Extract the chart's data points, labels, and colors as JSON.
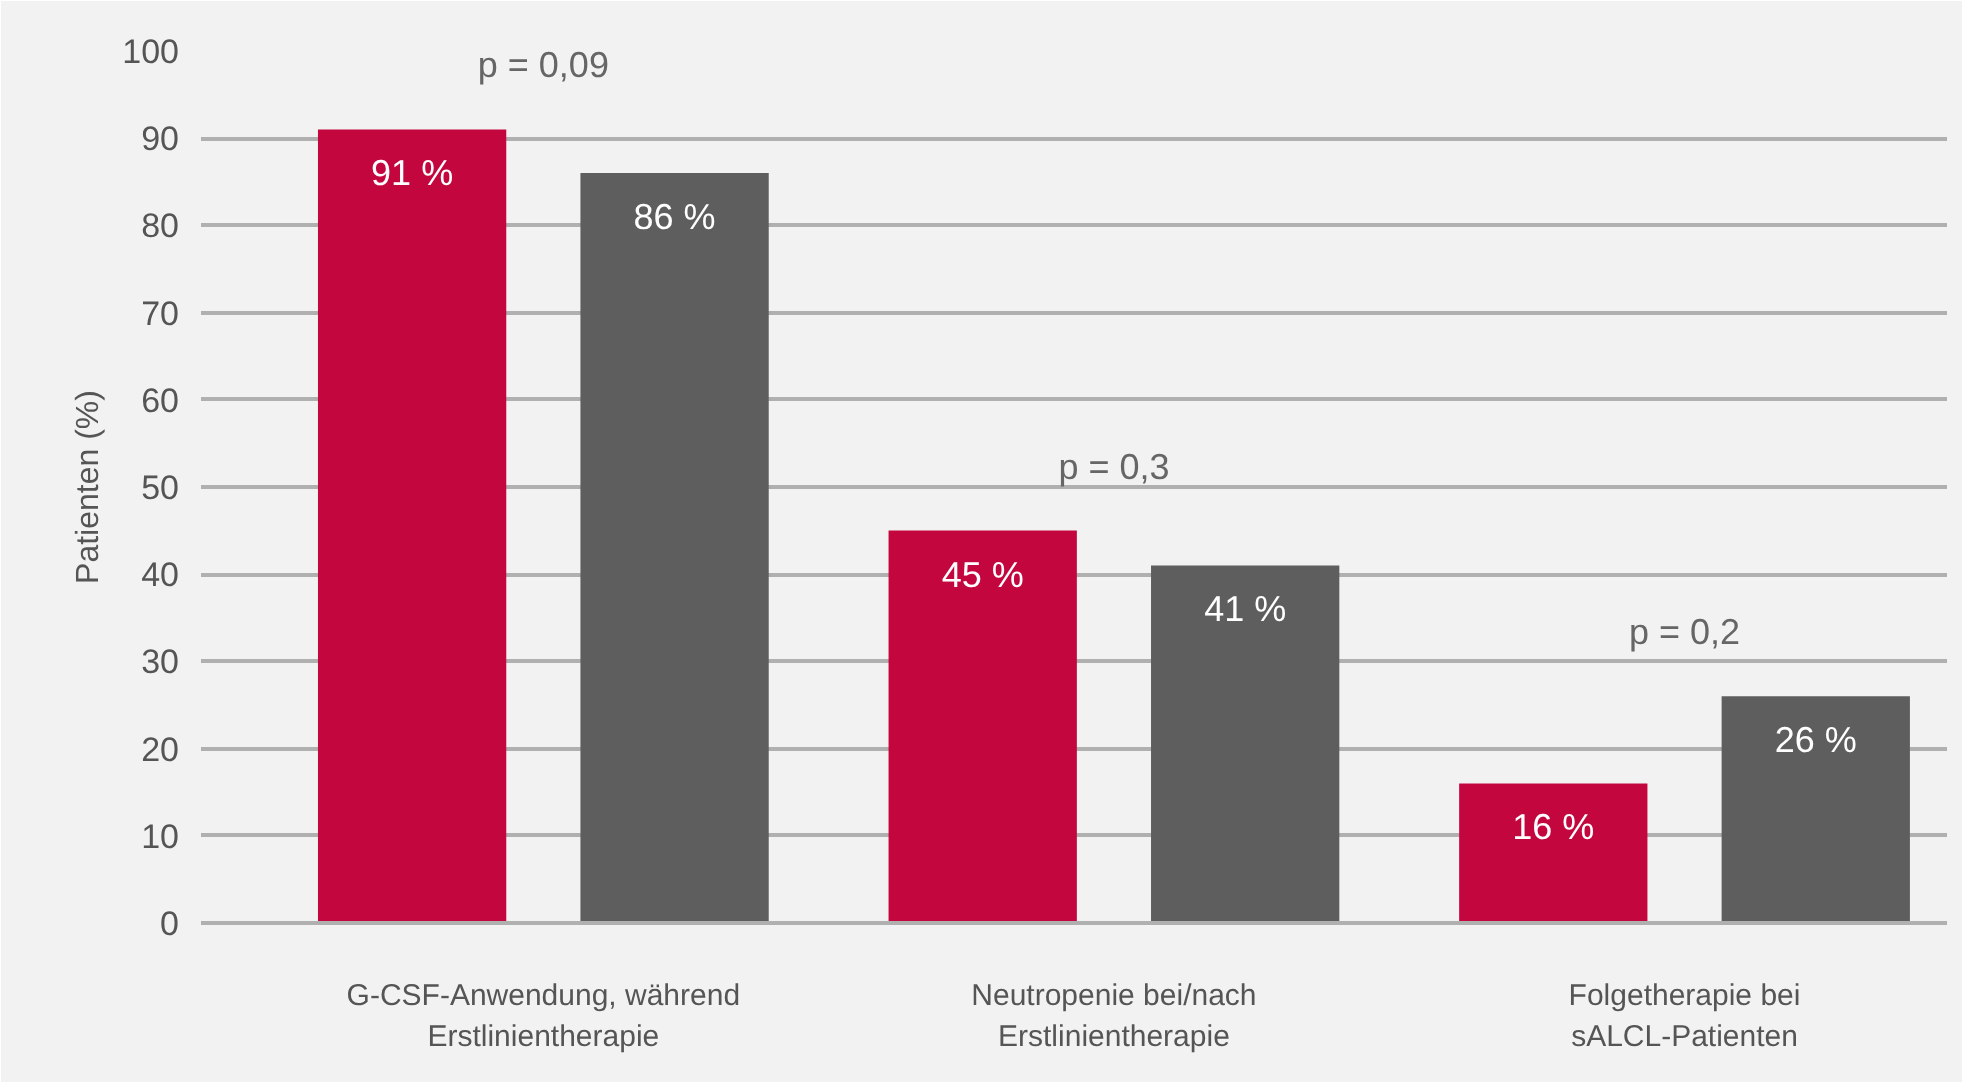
{
  "chart_data": {
    "type": "bar",
    "ylabel": "Patienten (%)",
    "categories": [
      "G-CSF-Anwendung, während\nErstlinientherapie",
      "Neutropenie bei/nach\nErstlinientherapie",
      "Folgetherapie bei\nsALCL-Patienten"
    ],
    "series": [
      {
        "color": "#c4063f",
        "values": [
          91,
          45,
          16
        ],
        "value_labels": [
          "91 %",
          "45 %",
          "16 %"
        ]
      },
      {
        "color": "#5e5e5e",
        "values": [
          86,
          41,
          26
        ],
        "value_labels": [
          "86 %",
          "41 %",
          "26 %"
        ]
      }
    ],
    "ylim": [
      0,
      100
    ],
    "yticks": [
      0,
      10,
      20,
      30,
      40,
      50,
      60,
      70,
      80,
      90,
      100
    ],
    "grid": "y",
    "annotations": [
      "p = 0,09",
      "p = 0,3",
      "p = 0,2"
    ]
  }
}
